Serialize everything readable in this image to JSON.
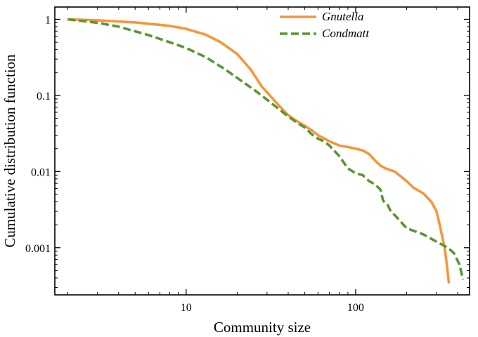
{
  "chart_data": {
    "type": "line",
    "scale": "log-log",
    "title": "",
    "xlabel": "Community size",
    "ylabel": "Cumulative distribution function",
    "xlim": [
      1.68,
      470
    ],
    "ylim": [
      0.00024,
      1.45
    ],
    "x_ticks": [
      {
        "value": 10,
        "label": "10"
      },
      {
        "value": 100,
        "label": "100"
      }
    ],
    "y_ticks": [
      {
        "value": 1,
        "label": "1"
      },
      {
        "value": 0.1,
        "label": "0.1"
      },
      {
        "value": 0.01,
        "label": "0.01"
      },
      {
        "value": 0.001,
        "label": "0.001"
      }
    ],
    "legend_position": "top-right",
    "series": [
      {
        "name": "Gnutella",
        "color": "#f5963c",
        "dash": "solid",
        "points": [
          [
            2,
            1.0
          ],
          [
            3,
            0.97
          ],
          [
            5,
            0.91
          ],
          [
            8,
            0.82
          ],
          [
            10,
            0.75
          ],
          [
            13,
            0.63
          ],
          [
            16,
            0.5
          ],
          [
            20,
            0.35
          ],
          [
            24,
            0.22
          ],
          [
            28,
            0.13
          ],
          [
            30,
            0.11
          ],
          [
            35,
            0.075
          ],
          [
            40,
            0.055
          ],
          [
            45,
            0.046
          ],
          [
            50,
            0.04
          ],
          [
            55,
            0.035
          ],
          [
            60,
            0.03
          ],
          [
            70,
            0.025
          ],
          [
            80,
            0.022
          ],
          [
            90,
            0.021
          ],
          [
            100,
            0.02
          ],
          [
            110,
            0.019
          ],
          [
            120,
            0.017
          ],
          [
            130,
            0.014
          ],
          [
            140,
            0.012
          ],
          [
            150,
            0.011
          ],
          [
            170,
            0.01
          ],
          [
            200,
            0.0075
          ],
          [
            220,
            0.0061
          ],
          [
            250,
            0.0052
          ],
          [
            280,
            0.004
          ],
          [
            300,
            0.003
          ],
          [
            310,
            0.0022
          ],
          [
            320,
            0.0016
          ],
          [
            335,
            0.001
          ],
          [
            345,
            0.0006
          ],
          [
            355,
            0.00034
          ]
        ]
      },
      {
        "name": "Condmatt",
        "color": "#5a9632",
        "dash": "dashed",
        "points": [
          [
            2,
            1.0
          ],
          [
            3,
            0.9
          ],
          [
            4,
            0.8
          ],
          [
            6,
            0.62
          ],
          [
            8,
            0.5
          ],
          [
            10,
            0.42
          ],
          [
            13,
            0.32
          ],
          [
            17,
            0.22
          ],
          [
            20,
            0.17
          ],
          [
            25,
            0.12
          ],
          [
            30,
            0.088
          ],
          [
            35,
            0.067
          ],
          [
            40,
            0.053
          ],
          [
            45,
            0.044
          ],
          [
            50,
            0.038
          ],
          [
            55,
            0.031
          ],
          [
            60,
            0.027
          ],
          [
            65,
            0.025
          ],
          [
            70,
            0.022
          ],
          [
            80,
            0.016
          ],
          [
            90,
            0.011
          ],
          [
            100,
            0.0095
          ],
          [
            110,
            0.009
          ],
          [
            120,
            0.0075
          ],
          [
            130,
            0.0068
          ],
          [
            140,
            0.0058
          ],
          [
            145,
            0.0042
          ],
          [
            150,
            0.0038
          ],
          [
            155,
            0.0036
          ],
          [
            160,
            0.0031
          ],
          [
            175,
            0.0025
          ],
          [
            200,
            0.0018
          ],
          [
            250,
            0.0015
          ],
          [
            300,
            0.0012
          ],
          [
            350,
            0.001
          ],
          [
            380,
            0.00085
          ],
          [
            410,
            0.0006
          ],
          [
            430,
            0.00038
          ]
        ]
      }
    ]
  }
}
